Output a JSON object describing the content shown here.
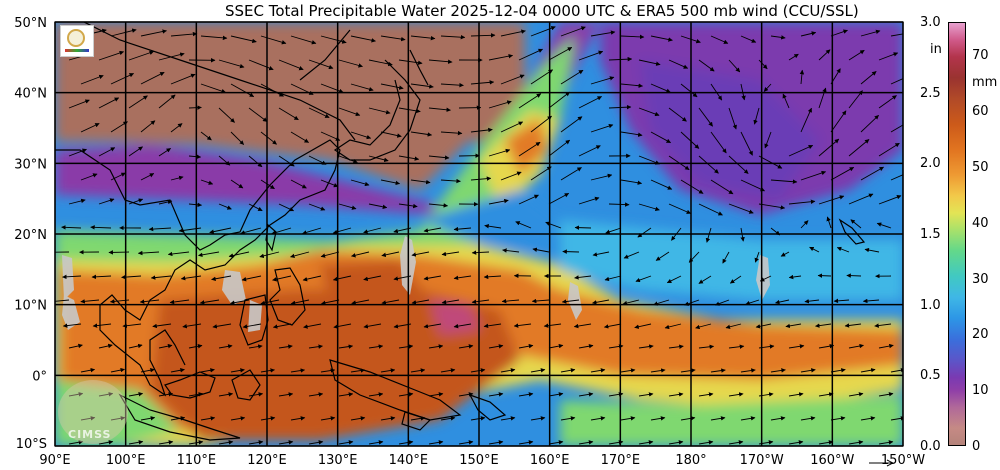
{
  "title": "SSEC Total Precipitable Water  2025-12-04 0000 UTC & ERA5 500 mb wind (CCU/SSL)",
  "latitude_labels": [
    "50°N",
    "40°N",
    "30°N",
    "20°N",
    "10°N",
    "0°",
    "10°S"
  ],
  "longitude_labels": [
    "90°E",
    "100°E",
    "110°E",
    "120°E",
    "130°E",
    "140°E",
    "150°E",
    "160°E",
    "170°E",
    "180°",
    "170°W",
    "160°W",
    "150°W"
  ],
  "colorbar": {
    "unit_in": "in",
    "unit_mm": "mm",
    "inch_ticks": [
      "3.0",
      "2.5",
      "2.0",
      "1.5",
      "1.0",
      "0.5",
      "0.0"
    ],
    "mm_ticks": [
      "70",
      "60",
      "50",
      "40",
      "30",
      "20",
      "10",
      "0"
    ],
    "range_in": [
      0.0,
      3.0
    ],
    "range_mm": [
      0,
      76
    ]
  },
  "watermark_text": "CIMSS",
  "colors": {
    "dry_brown": "#a9705f",
    "purple": "#8a3aa8",
    "blue": "#3a8fe0",
    "green": "#7fd870",
    "yellow": "#e6d84e",
    "orange": "#e27a25",
    "dark_orange": "#c4561c",
    "magenta": "#c04a7a",
    "land_gray": "#c8c8c8",
    "grid": "#000000"
  }
}
